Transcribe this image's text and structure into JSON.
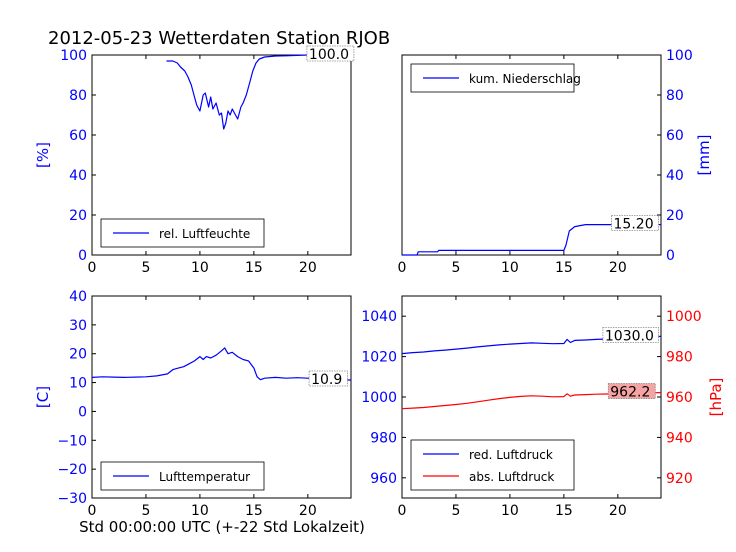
{
  "figure": {
    "title": "2012-05-23 Wetterdaten Station RJOB",
    "xlabel": "Std 00:00:00 UTC (+-22 Std Lokalzeit)"
  },
  "chart_data": [
    {
      "id": "humidity",
      "type": "line",
      "ylabel": "[%]",
      "xlim": [
        0,
        24
      ],
      "ylim": [
        0,
        100
      ],
      "xticks": [
        0,
        5,
        10,
        15,
        20
      ],
      "yticks": [
        0,
        20,
        40,
        60,
        80,
        100
      ],
      "legend": "bottom-left",
      "grid": false,
      "annotation": "100.0",
      "series": [
        {
          "name": "rel. Luftfeuchte",
          "color": "#0000ff",
          "x": [
            6.9,
            7.5,
            7.9,
            8.2,
            8.6,
            8.9,
            9.2,
            9.5,
            9.7,
            10.0,
            10.3,
            10.5,
            10.8,
            11.0,
            11.2,
            11.5,
            11.8,
            12.0,
            12.2,
            12.4,
            12.6,
            12.8,
            13.0,
            13.2,
            13.5,
            13.8,
            14.0,
            14.3,
            14.6,
            14.9,
            15.2,
            15.5,
            16.0,
            17.0,
            18.0,
            19.0,
            20.0,
            22.0,
            24.0
          ],
          "y": [
            97,
            97,
            96,
            94,
            92,
            89,
            85,
            79,
            75,
            72,
            80,
            81,
            74,
            79,
            73,
            76,
            70,
            71,
            63,
            66,
            72,
            70,
            73,
            71,
            68,
            74,
            76,
            80,
            86,
            92,
            96,
            98,
            99,
            99.5,
            99.6,
            99.8,
            100,
            100,
            100
          ]
        }
      ]
    },
    {
      "id": "precip",
      "type": "line",
      "ylabel": "[mm]",
      "xlim": [
        0,
        24
      ],
      "ylim": [
        0,
        100
      ],
      "xticks": [
        0,
        5,
        10,
        15,
        20
      ],
      "yticks": [
        0,
        20,
        40,
        60,
        80,
        100
      ],
      "legend": "top-left",
      "grid": false,
      "annotation": "15.20",
      "series": [
        {
          "name": "kum. Niederschlag",
          "color": "#0000ff",
          "x": [
            0,
            1.4,
            1.5,
            3.3,
            3.4,
            15.0,
            15.2,
            15.5,
            16.0,
            17.0,
            24.0
          ],
          "y": [
            0,
            0,
            1.6,
            1.6,
            2.3,
            2.3,
            5,
            12,
            14.2,
            15.2,
            15.2
          ]
        }
      ]
    },
    {
      "id": "temperature",
      "type": "line",
      "ylabel": "[C]",
      "xlim": [
        0,
        24
      ],
      "ylim": [
        -30,
        40
      ],
      "xticks": [
        0,
        5,
        10,
        15,
        20
      ],
      "yticks": [
        -30,
        -20,
        -10,
        0,
        10,
        20,
        30,
        40
      ],
      "legend": "bottom-left",
      "grid": false,
      "annotation": "10.9",
      "series": [
        {
          "name": "Lufttemperatur",
          "color": "#0000ff",
          "x": [
            0,
            1,
            2,
            3,
            4,
            5,
            6,
            7,
            7.5,
            8,
            8.5,
            9,
            9.5,
            10,
            10.3,
            10.6,
            11,
            11.5,
            12,
            12.3,
            12.6,
            13,
            13.5,
            14,
            14.5,
            15,
            15.3,
            15.6,
            16,
            17,
            18,
            19,
            20,
            22,
            24
          ],
          "y": [
            11.8,
            12.0,
            11.9,
            11.8,
            11.9,
            12.0,
            12.3,
            13.0,
            14.5,
            15.0,
            15.5,
            16.5,
            17.5,
            19.0,
            18.0,
            19.0,
            18.5,
            19.5,
            21.0,
            22.0,
            20.0,
            20.5,
            19.0,
            18.0,
            17.5,
            15.0,
            12.0,
            11.0,
            11.5,
            11.8,
            11.5,
            11.7,
            11.5,
            11.0,
            10.9
          ]
        }
      ]
    },
    {
      "id": "pressure",
      "type": "line",
      "ylabel": "[hPa]",
      "xlim": [
        0,
        24
      ],
      "ylim": [
        950,
        1050
      ],
      "ylim_right": [
        910,
        1010
      ],
      "xticks": [
        0,
        5,
        10,
        15,
        20
      ],
      "yticks": [
        960,
        980,
        1000,
        1020,
        1040
      ],
      "yticks_right": [
        920,
        940,
        960,
        980,
        1000
      ],
      "legend": "bottom-left",
      "grid": false,
      "annotations": [
        "1030.0",
        "962.2"
      ],
      "series": [
        {
          "name": "red. Luftdruck",
          "color": "#0000ff",
          "axis": "left",
          "x": [
            0,
            1,
            2,
            3,
            4,
            5,
            6,
            7,
            8,
            9,
            10,
            11,
            12,
            13,
            14,
            15,
            15.3,
            15.6,
            16,
            17,
            18,
            19,
            20,
            21,
            22,
            23,
            24
          ],
          "y": [
            1021.5,
            1022,
            1022.3,
            1022.8,
            1023.2,
            1023.7,
            1024.2,
            1024.8,
            1025.3,
            1025.8,
            1026.2,
            1026.5,
            1026.8,
            1026.6,
            1026.4,
            1026.5,
            1028.5,
            1027,
            1028,
            1028.2,
            1028.5,
            1028.7,
            1029,
            1029.2,
            1029.5,
            1029.8,
            1030.0
          ]
        },
        {
          "name": "abs. Luftdruck",
          "color": "#ff0000",
          "axis": "right",
          "x": [
            0,
            1,
            2,
            3,
            4,
            5,
            6,
            7,
            8,
            9,
            10,
            11,
            12,
            13,
            14,
            15,
            15.3,
            15.6,
            16,
            17,
            18,
            19,
            20,
            21,
            22,
            23,
            24
          ],
          "y": [
            954.2,
            954.5,
            954.8,
            955.3,
            955.8,
            956.3,
            956.9,
            957.6,
            958.4,
            959.2,
            959.8,
            960.3,
            960.6,
            960.4,
            960.1,
            960.2,
            961.6,
            960.4,
            961.0,
            961.2,
            961.4,
            961.5,
            961.6,
            961.8,
            962.0,
            962.1,
            962.2
          ]
        }
      ]
    }
  ]
}
